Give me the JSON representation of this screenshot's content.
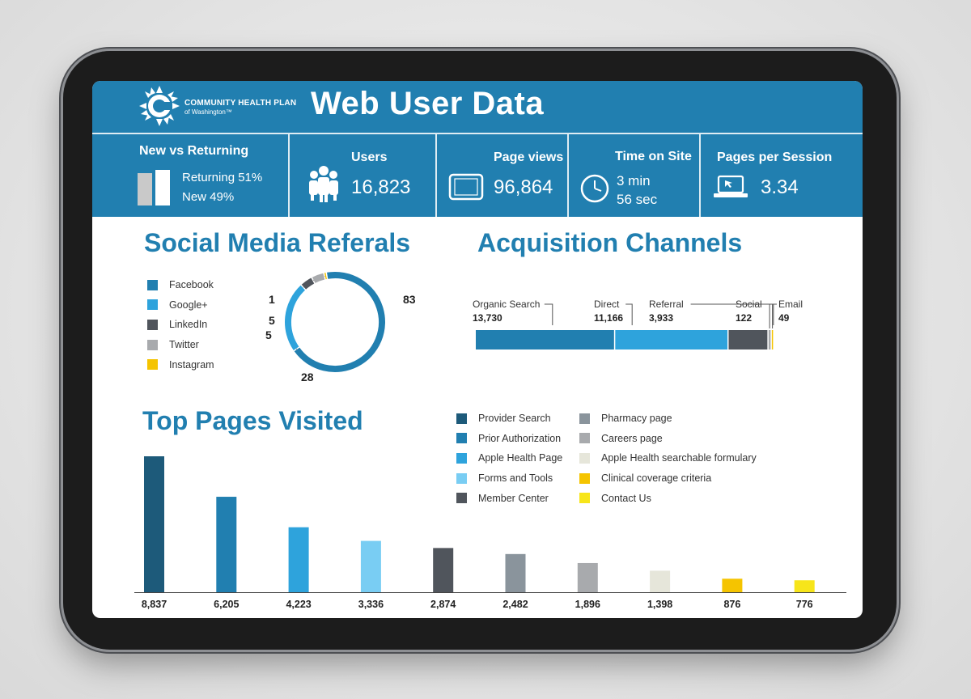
{
  "brand": {
    "line1": "COMMUNITY HEALTH PLAN",
    "line2": "of Washington™"
  },
  "title": "Web User Data",
  "stats": {
    "new_vs_returning": {
      "label": "New vs Returning",
      "returning": "Returning 51%",
      "new": "New 49%",
      "returning_pct": 51,
      "new_pct": 49
    },
    "users": {
      "label": "Users",
      "value": "16,823",
      "icon": "users-icon"
    },
    "page_views": {
      "label": "Page views",
      "value": "96,864",
      "icon": "tablet-icon"
    },
    "time_on_site": {
      "label": "Time on Site",
      "line1": "3 min",
      "line2": "56 sec",
      "icon": "clock-icon"
    },
    "pages_per_session": {
      "label": "Pages per Session",
      "value": "3.34",
      "icon": "laptop-icon"
    }
  },
  "social": {
    "title": "Social Media Referals",
    "legend": [
      {
        "name": "Facebook",
        "color": "#217fb0"
      },
      {
        "name": "Google+",
        "color": "#2ea3dc"
      },
      {
        "name": "LinkedIn",
        "color": "#50555c"
      },
      {
        "name": "Twitter",
        "color": "#a8aaad"
      },
      {
        "name": "Instagram",
        "color": "#f5c400"
      }
    ],
    "labels": {
      "facebook": "83",
      "google": "28",
      "linkedin": "5",
      "twitter": "5",
      "instagram": "1"
    }
  },
  "acquisition": {
    "title": "Acquisition Channels",
    "channels": [
      {
        "name": "Organic Search",
        "value": "13,730",
        "color": "#217fb0"
      },
      {
        "name": "Direct",
        "value": "11,166",
        "color": "#2ea3dc"
      },
      {
        "name": "Referral",
        "value": "3,933",
        "color": "#50555c"
      },
      {
        "name": "Social",
        "value": "122",
        "color": "#a8aaad"
      },
      {
        "name": "Email",
        "value": "49",
        "color": "#f5c400"
      }
    ]
  },
  "top_pages": {
    "title": "Top Pages Visited",
    "legend": [
      {
        "name": "Provider Search",
        "color": "#1d5a7a"
      },
      {
        "name": "Prior Authorization",
        "color": "#217fb0"
      },
      {
        "name": "Apple Health Page",
        "color": "#2ea3dc"
      },
      {
        "name": "Forms and Tools",
        "color": "#79cdf3"
      },
      {
        "name": "Member Center",
        "color": "#50555c"
      },
      {
        "name": "Pharmacy page",
        "color": "#8a949c"
      },
      {
        "name": "Careers page",
        "color": "#a8aaad"
      },
      {
        "name": "Apple Health searchable formulary",
        "color": "#e6e6da"
      },
      {
        "name": "Clinical coverage criteria",
        "color": "#f5c400"
      },
      {
        "name": "Contact Us",
        "color": "#f7e51a"
      }
    ]
  },
  "chart_data": [
    {
      "type": "pie",
      "title": "Social Media Referals",
      "categories": [
        "Facebook",
        "Google+",
        "LinkedIn",
        "Twitter",
        "Instagram"
      ],
      "values": [
        83,
        28,
        5,
        5,
        1
      ]
    },
    {
      "type": "bar",
      "title": "Acquisition Channels",
      "categories": [
        "Organic Search",
        "Direct",
        "Referral",
        "Social",
        "Email"
      ],
      "values": [
        13730,
        11166,
        3933,
        122,
        49
      ]
    },
    {
      "type": "bar",
      "title": "Top Pages Visited",
      "categories": [
        "Provider Search",
        "Prior Authorization",
        "Apple Health Page",
        "Forms and Tools",
        "Member Center",
        "Pharmacy page",
        "Careers page",
        "Apple Health searchable formulary",
        "Clinical coverage criteria",
        "Contact Us"
      ],
      "values": [
        8837,
        6205,
        4223,
        3336,
        2874,
        2482,
        1896,
        1398,
        876,
        776
      ],
      "value_labels": [
        "8,837",
        "6,205",
        "4,223",
        "3,336",
        "2,874",
        "2,482",
        "1,896",
        "1,398",
        "876",
        "776"
      ]
    }
  ]
}
